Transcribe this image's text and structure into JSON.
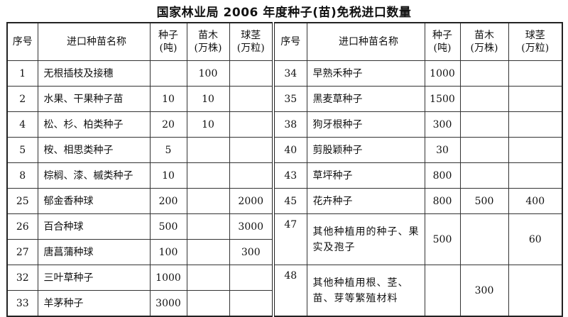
{
  "title": "国家林业局 2006 年度种子(苗)免税进口数量",
  "headers": {
    "no": "序号",
    "name": "进口种苗名称",
    "seed": "种子\n(吨)",
    "seedling": "苗木\n(万株)",
    "bulb": "球茎\n(万粒)"
  },
  "left": [
    {
      "no": "1",
      "name": "无根插枝及接穗",
      "seed": "",
      "seedling": "100",
      "bulb": ""
    },
    {
      "no": "2",
      "name": "水果、干果种子苗",
      "seed": "10",
      "seedling": "10",
      "bulb": ""
    },
    {
      "no": "4",
      "name": "松、杉、柏类种子",
      "seed": "20",
      "seedling": "10",
      "bulb": ""
    },
    {
      "no": "5",
      "name": "桉、相思类种子",
      "seed": "5",
      "seedling": "",
      "bulb": ""
    },
    {
      "no": "8",
      "name": "棕榈、漆、槭类种子",
      "seed": "10",
      "seedling": "",
      "bulb": ""
    },
    {
      "no": "25",
      "name": "郁金香种球",
      "seed": "200",
      "seedling": "",
      "bulb": "2000"
    },
    {
      "no": "26",
      "name": "百合种球",
      "seed": "500",
      "seedling": "",
      "bulb": "3000"
    },
    {
      "no": "27",
      "name": "唐菖蒲种球",
      "seed": "100",
      "seedling": "",
      "bulb": "300"
    },
    {
      "no": "32",
      "name": "三叶草种子",
      "seed": "1000",
      "seedling": "",
      "bulb": ""
    },
    {
      "no": "33",
      "name": "羊茅种子",
      "seed": "3000",
      "seedling": "",
      "bulb": ""
    }
  ],
  "right": [
    {
      "no": "34",
      "name": "早熟禾种子",
      "seed": "1000",
      "seedling": "",
      "bulb": ""
    },
    {
      "no": "35",
      "name": "黑麦草种子",
      "seed": "1500",
      "seedling": "",
      "bulb": ""
    },
    {
      "no": "38",
      "name": "狗牙根种子",
      "seed": "300",
      "seedling": "",
      "bulb": ""
    },
    {
      "no": "40",
      "name": "剪股颖种子",
      "seed": "30",
      "seedling": "",
      "bulb": ""
    },
    {
      "no": "43",
      "name": "草坪种子",
      "seed": "800",
      "seedling": "",
      "bulb": ""
    },
    {
      "no": "45",
      "name": "花卉种子",
      "seed": "800",
      "seedling": "500",
      "bulb": "400"
    },
    {
      "no": "47",
      "name": "其他种植用的种子、果实及孢子",
      "seed": "500",
      "seedling": "",
      "bulb": "60"
    },
    {
      "no": "48",
      "name": "其他种植用根、茎、苗、芽等繁殖材料",
      "seed": "",
      "seedling": "300",
      "bulb": ""
    }
  ]
}
